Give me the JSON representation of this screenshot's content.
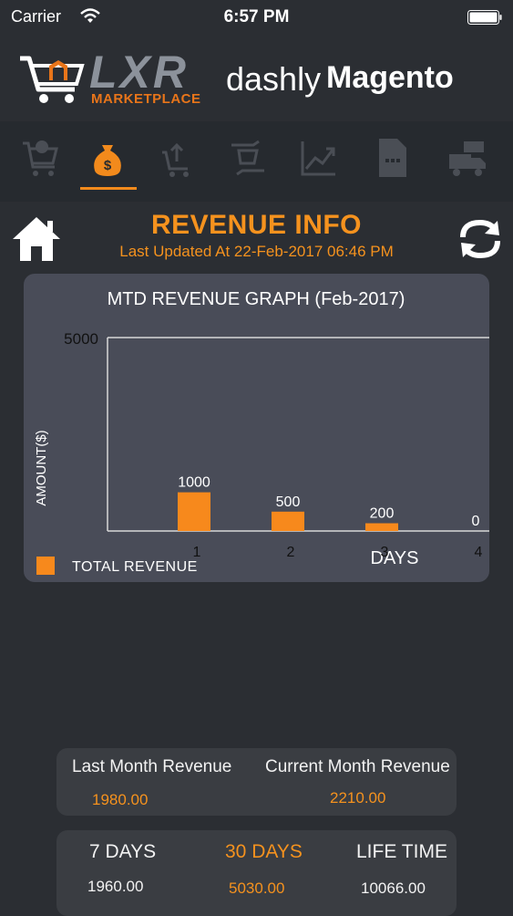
{
  "status": {
    "carrier": "Carrier",
    "time": "6:57 PM"
  },
  "brand": {
    "lxr": "LXR",
    "marketplace": "MARKETPLACE",
    "dashly": "dashly",
    "magento": "Magento"
  },
  "nav": {
    "items": [
      {
        "icon": "orders-cart-icon"
      },
      {
        "icon": "revenue-bag-icon",
        "active": true
      },
      {
        "icon": "product-upload-icon"
      },
      {
        "icon": "sync-cart-icon"
      },
      {
        "icon": "growth-chart-icon"
      },
      {
        "icon": "document-icon"
      },
      {
        "icon": "shipping-truck-icon"
      }
    ],
    "active_color": "#f28a1c"
  },
  "header": {
    "title": "REVENUE INFO",
    "updated": "Last Updated At 22-Feb-2017 06:46 PM"
  },
  "chart_data": {
    "type": "bar",
    "title": "MTD REVENUE GRAPH (Feb-2017)",
    "xlabel": "DAYS",
    "ylabel": "AMOUNT($)",
    "ymax_label": "5000",
    "ylim": [
      0,
      5000
    ],
    "categories": [
      "1",
      "2",
      "3",
      "4"
    ],
    "series": [
      {
        "name": "TOTAL REVENUE",
        "values": [
          1000,
          500,
          200,
          0
        ],
        "color": "#f7891c"
      }
    ],
    "legend": "bottom-left"
  },
  "summary": {
    "last_month_label": "Last Month Revenue",
    "last_month_value": "1980.00",
    "current_month_label": "Current Month Revenue",
    "current_month_value": "2210.00"
  },
  "periods": {
    "days7_label": "7 DAYS",
    "days7_value": "1960.00",
    "days30_label": "30 DAYS",
    "days30_value": "5030.00",
    "lifetime_label": "LIFE TIME",
    "lifetime_value": "10066.00"
  }
}
